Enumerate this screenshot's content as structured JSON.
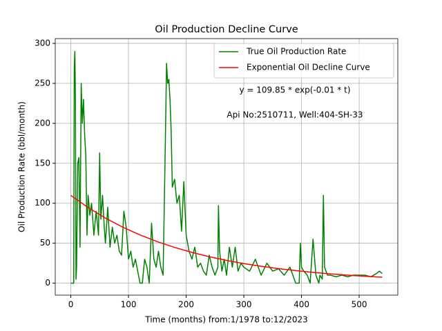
{
  "chart_data": {
    "type": "line",
    "title": "Oil Production Decline Curve",
    "x_label": "Time (months) from:1/1978 to:12/2023",
    "y_label": "Oil Production Rate (bbl/month)",
    "annotations": [
      "y = 109.85 * exp(-0.01 * t)",
      "Api No:2510711, Well:404-SH-33"
    ],
    "xlim": [
      -27,
      567
    ],
    "ylim": [
      -15,
      306
    ],
    "xticks": [
      0,
      100,
      200,
      300,
      400,
      500
    ],
    "yticks": [
      0,
      50,
      100,
      150,
      200,
      250,
      300
    ],
    "grid": true,
    "legend": "upper right",
    "series": [
      {
        "name": "True Oil Production Rate",
        "color": "#008000",
        "x": [
          0,
          5,
          6,
          7,
          8,
          9,
          10,
          12,
          14,
          16,
          18,
          20,
          22,
          24,
          26,
          28,
          30,
          33,
          36,
          40,
          44,
          48,
          50,
          52,
          55,
          58,
          60,
          64,
          68,
          72,
          76,
          80,
          84,
          88,
          92,
          96,
          100,
          104,
          108,
          112,
          116,
          120,
          124,
          128,
          132,
          136,
          140,
          144,
          148,
          152,
          156,
          160,
          164,
          166,
          168,
          170,
          172,
          174,
          176,
          180,
          184,
          188,
          192,
          196,
          200,
          205,
          210,
          215,
          220,
          225,
          230,
          235,
          240,
          245,
          250,
          255,
          256,
          258,
          262,
          266,
          270,
          275,
          280,
          285,
          290,
          295,
          300,
          310,
          320,
          330,
          340,
          350,
          360,
          370,
          380,
          390,
          396,
          398,
          400,
          404,
          410,
          415,
          420,
          425,
          430,
          432,
          436,
          438,
          440,
          445,
          450,
          460,
          470,
          480,
          490,
          500,
          510,
          520,
          530,
          535,
          540
        ],
        "values": [
          0,
          0,
          270,
          290,
          230,
          5,
          20,
          150,
          157,
          45,
          250,
          200,
          230,
          185,
          160,
          60,
          110,
          85,
          100,
          60,
          90,
          60,
          163,
          80,
          110,
          70,
          50,
          95,
          45,
          70,
          50,
          60,
          40,
          35,
          90,
          70,
          30,
          40,
          20,
          30,
          15,
          0,
          0,
          30,
          20,
          0,
          75,
          30,
          20,
          40,
          20,
          10,
          180,
          275,
          250,
          255,
          230,
          190,
          120,
          130,
          100,
          110,
          65,
          127,
          60,
          40,
          30,
          45,
          20,
          25,
          15,
          10,
          35,
          20,
          10,
          20,
          97,
          40,
          15,
          30,
          10,
          45,
          20,
          45,
          15,
          25,
          20,
          15,
          30,
          10,
          25,
          15,
          18,
          10,
          20,
          0,
          0,
          50,
          20,
          15,
          10,
          0,
          55,
          10,
          0,
          10,
          5,
          110,
          20,
          10,
          10,
          8,
          10,
          8,
          10,
          10,
          10,
          8,
          12,
          15,
          12
        ]
      },
      {
        "name": "Exponential Oil Decline Curve",
        "color": "#ff0000",
        "x": [
          0,
          30,
          60,
          90,
          120,
          150,
          180,
          210,
          240,
          270,
          300,
          330,
          360,
          390,
          420,
          450,
          480,
          510,
          540
        ],
        "values": [
          109.85,
          94.6,
          81.4,
          70.1,
          60.3,
          51.9,
          44.7,
          38.5,
          33.1,
          28.5,
          24.5,
          21.1,
          18.2,
          15.7,
          13.5,
          11.6,
          10.0,
          8.6,
          7.4
        ]
      }
    ]
  }
}
